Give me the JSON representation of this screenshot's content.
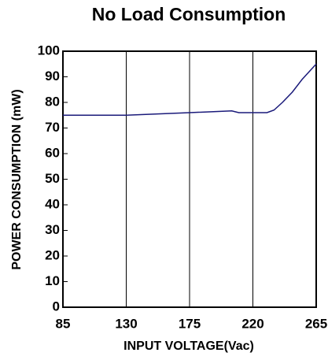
{
  "chart_data": {
    "type": "line",
    "title": "No Load Consumption",
    "xlabel": "INPUT VOLTAGE(Vac)",
    "ylabel": "POWER CONSUMPTION (mW)",
    "x": [
      85,
      130,
      175,
      205,
      210,
      230,
      235,
      241,
      248,
      255,
      265
    ],
    "series": [
      {
        "name": "No Load Consumption",
        "color": "#1a1a7a",
        "values": [
          75,
          75,
          76,
          76.7,
          76,
          76,
          77,
          80,
          84,
          89,
          95
        ]
      }
    ],
    "xlim": [
      85,
      265
    ],
    "xticks": [
      85,
      130,
      175,
      220,
      265
    ],
    "ylim": [
      0,
      100
    ],
    "yticks": [
      0,
      10,
      20,
      30,
      40,
      50,
      60,
      70,
      80,
      90,
      100
    ],
    "grid": "x"
  }
}
